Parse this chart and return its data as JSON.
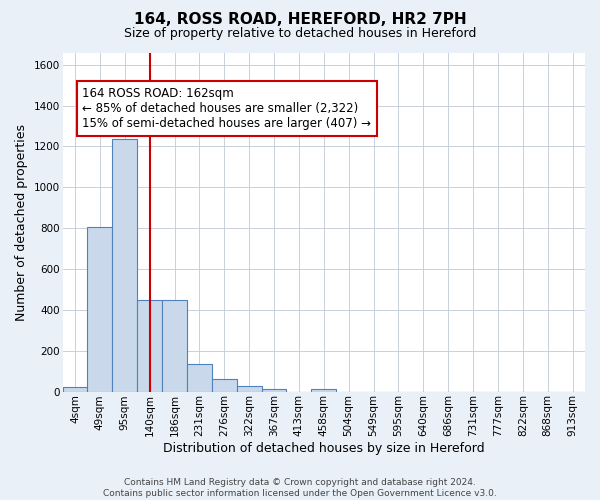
{
  "title": "164, ROSS ROAD, HEREFORD, HR2 7PH",
  "subtitle": "Size of property relative to detached houses in Hereford",
  "xlabel": "Distribution of detached houses by size in Hereford",
  "ylabel": "Number of detached properties",
  "footer_line1": "Contains HM Land Registry data © Crown copyright and database right 2024.",
  "footer_line2": "Contains public sector information licensed under the Open Government Licence v3.0.",
  "bar_labels": [
    "4sqm",
    "49sqm",
    "95sqm",
    "140sqm",
    "186sqm",
    "231sqm",
    "276sqm",
    "322sqm",
    "367sqm",
    "413sqm",
    "458sqm",
    "504sqm",
    "549sqm",
    "595sqm",
    "640sqm",
    "686sqm",
    "731sqm",
    "777sqm",
    "822sqm",
    "868sqm",
    "913sqm"
  ],
  "bar_values": [
    22,
    805,
    1238,
    450,
    450,
    135,
    60,
    25,
    12,
    0,
    12,
    0,
    0,
    0,
    0,
    0,
    0,
    0,
    0,
    0,
    0
  ],
  "bar_color": "#c9d9eb",
  "bar_edge_color": "#4f81bd",
  "vline_x": 3.0,
  "vline_color": "#cc0000",
  "annotation_text": "164 ROSS ROAD: 162sqm\n← 85% of detached houses are smaller (2,322)\n15% of semi-detached houses are larger (407) →",
  "annotation_box_color": "white",
  "annotation_box_edge_color": "#cc0000",
  "ylim": [
    0,
    1660
  ],
  "yticks": [
    0,
    200,
    400,
    600,
    800,
    1000,
    1200,
    1400,
    1600
  ],
  "bg_color": "#eaf0f8",
  "plot_bg_color": "#ffffff",
  "grid_color": "#c8d0dc",
  "title_fontsize": 11,
  "subtitle_fontsize": 9,
  "axis_label_fontsize": 9,
  "tick_fontsize": 7.5,
  "annotation_fontsize": 8.5,
  "footer_fontsize": 6.5
}
